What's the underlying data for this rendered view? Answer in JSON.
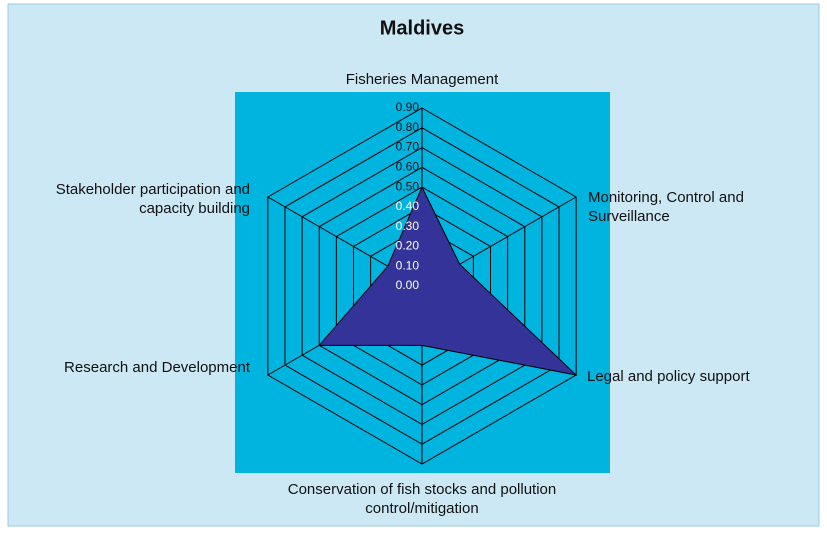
{
  "chart_data": {
    "type": "radar",
    "title": "Maldives",
    "categories": [
      "Fisheries Management",
      "Monitoring, Control and Surveillance",
      "Legal and policy support",
      "Conservation of fish stocks and pollution control/mitigation",
      "Research and Development",
      "Stakeholder participation and capacity building"
    ],
    "values": [
      0.5,
      0.22,
      0.9,
      0.3,
      0.6,
      0.2
    ],
    "color": "#333399",
    "ylim": [
      0,
      0.9
    ],
    "yticks": [
      {
        "value": 0,
        "label": "0.00"
      },
      {
        "value": 0.1,
        "label": "0.10"
      },
      {
        "value": 0.2,
        "label": "0.20"
      },
      {
        "value": 0.3,
        "label": "0.30"
      },
      {
        "value": 0.4,
        "label": "0.40"
      },
      {
        "value": 0.5,
        "label": "0.50"
      },
      {
        "value": 0.6,
        "label": "0.60"
      },
      {
        "value": 0.7,
        "label": "0.70"
      },
      {
        "value": 0.8,
        "label": "0.80"
      },
      {
        "value": 0.9,
        "label": "0.90"
      }
    ],
    "grid": true
  }
}
